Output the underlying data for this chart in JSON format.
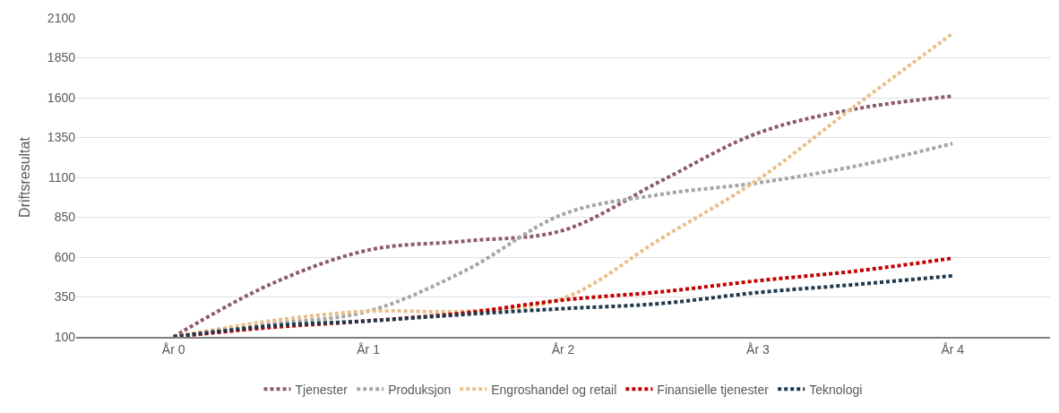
{
  "chart_data": {
    "type": "line",
    "ylabel": "Driftsresultat",
    "categories": [
      "År 0",
      null,
      "År 1",
      null,
      "År 2",
      null,
      "År 3",
      null,
      "År 4"
    ],
    "series": [
      {
        "name": "Tjenester",
        "color": "#8e5a6e",
        "values": [
          100,
          431,
          644,
          701,
          768,
          1076,
          1378,
          1529,
          1609
        ]
      },
      {
        "name": "Produksjon",
        "color": "#a6a6a6",
        "values": [
          100,
          180,
          261,
          517,
          869,
          993,
          1066,
          1170,
          1313
        ]
      },
      {
        "name": "Engroshandel og retail",
        "color": "#e8c08a",
        "values": [
          100,
          200,
          261,
          261,
          341,
          714,
          1086,
          1549,
          2003
        ]
      },
      {
        "name": "Finansielle tjenester",
        "color": "#c00000",
        "values": [
          100,
          159,
          200,
          251,
          331,
          382,
          452,
          512,
          593
        ]
      },
      {
        "name": "Teknologi",
        "color": "#1f3a4d",
        "values": [
          100,
          169,
          200,
          241,
          277,
          309,
          378,
          428,
          483
        ]
      }
    ],
    "ylim": [
      100,
      2100
    ],
    "yticks": [
      100,
      350,
      600,
      850,
      1100,
      1350,
      1600,
      1850,
      2100
    ],
    "grid": "y",
    "legend": "bottom",
    "marker": "none",
    "line_style": "dotted"
  }
}
